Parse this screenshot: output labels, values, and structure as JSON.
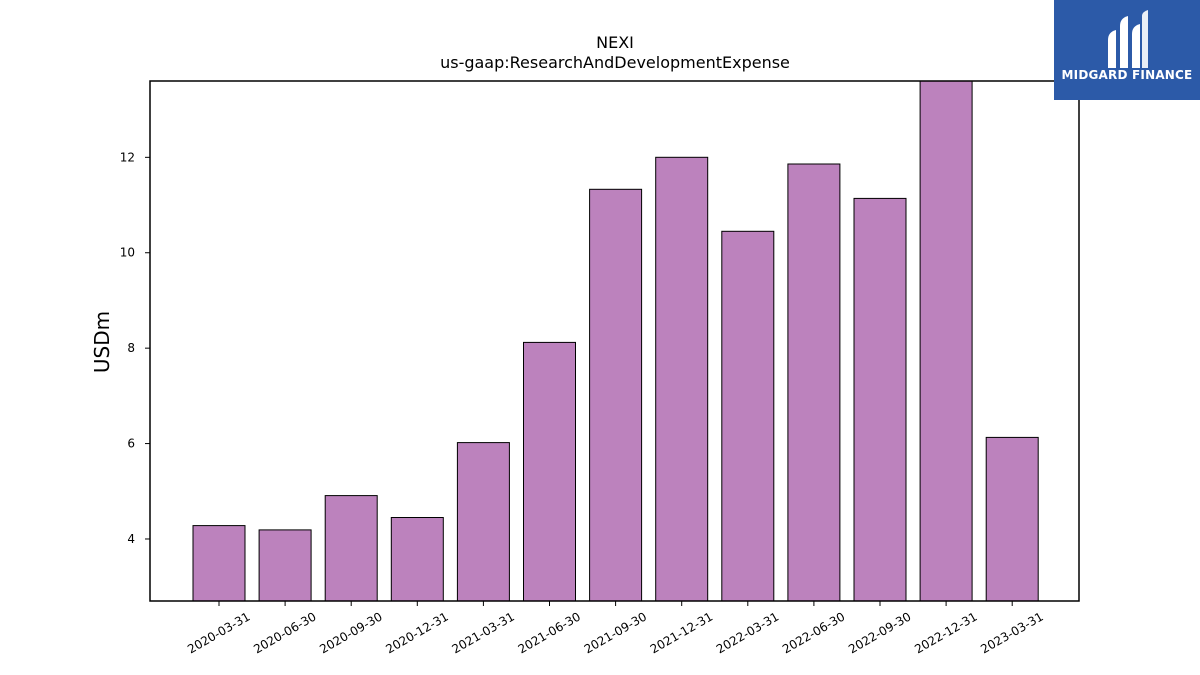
{
  "colors": {
    "bar_fill": "#bc82bd",
    "bar_stroke": "#000000",
    "logo_bg": "#2c5aa8"
  },
  "logo": {
    "text": "MIDGARD FINANCE",
    "icon": "midgard-logo-icon"
  },
  "chart_data": {
    "type": "bar",
    "title": "NEXI",
    "subtitle": "us-gaap:ResearchAndDevelopmentExpense",
    "xlabel": "",
    "ylabel": "USDm",
    "ylim": [
      2.7,
      13.6
    ],
    "yticks": [
      4,
      6,
      8,
      10,
      12
    ],
    "grid": false,
    "categories": [
      "2020-03-31",
      "2020-06-30",
      "2020-09-30",
      "2020-12-31",
      "2021-03-31",
      "2021-06-30",
      "2021-09-30",
      "2021-12-31",
      "2022-03-31",
      "2022-06-30",
      "2022-09-30",
      "2022-12-31",
      "2023-03-31"
    ],
    "values": [
      4.28,
      4.19,
      4.91,
      4.45,
      6.02,
      8.12,
      11.33,
      12.0,
      10.45,
      11.86,
      11.14,
      13.6,
      6.13
    ]
  }
}
